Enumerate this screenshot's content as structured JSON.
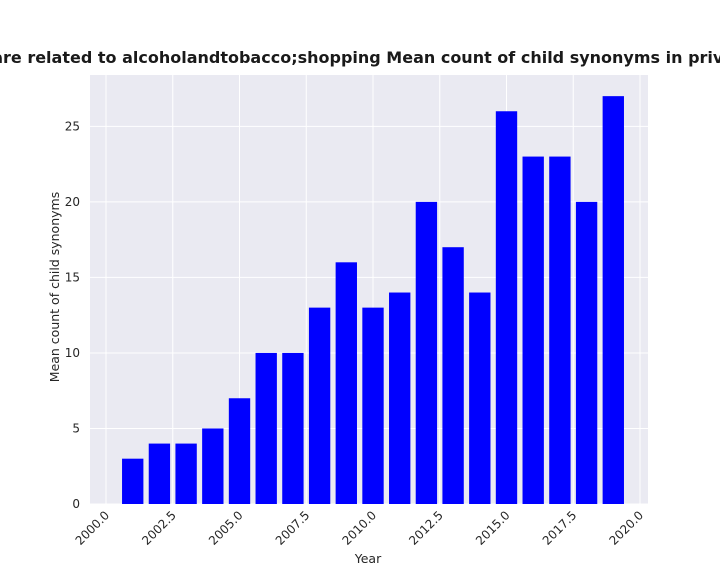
{
  "chart_data": {
    "type": "bar",
    "title": "categories are related to alcoholandtobacco;shopping Mean count of child synonyms in privacy policies",
    "xlabel": "Year",
    "ylabel": "Mean count of child synonyms",
    "x": [
      2001,
      2002,
      2003,
      2004,
      2005,
      2006,
      2007,
      2008,
      2009,
      2010,
      2011,
      2012,
      2013,
      2014,
      2015,
      2016,
      2017,
      2018,
      2019
    ],
    "values": [
      3,
      4,
      4,
      5,
      7,
      10,
      10,
      13,
      16,
      13,
      14,
      20,
      17,
      14,
      26,
      23,
      23,
      20,
      27
    ],
    "xlim": [
      1999.4,
      2020.3
    ],
    "ylim": [
      0,
      28.4
    ],
    "xticks": [
      2000.0,
      2002.5,
      2005.0,
      2007.5,
      2010.0,
      2012.5,
      2015.0,
      2017.5,
      2020.0
    ],
    "xtick_labels": [
      "2000.0",
      "2002.5",
      "2005.0",
      "2007.5",
      "2010.0",
      "2012.5",
      "2015.0",
      "2017.5",
      "2020.0"
    ],
    "yticks": [
      0,
      5,
      10,
      15,
      20,
      25
    ],
    "ytick_labels": [
      "0",
      "5",
      "10",
      "15",
      "20",
      "25"
    ],
    "bar_color": "#0000ff",
    "plot_background": "#eaeaf2",
    "grid": true,
    "legend": false
  }
}
